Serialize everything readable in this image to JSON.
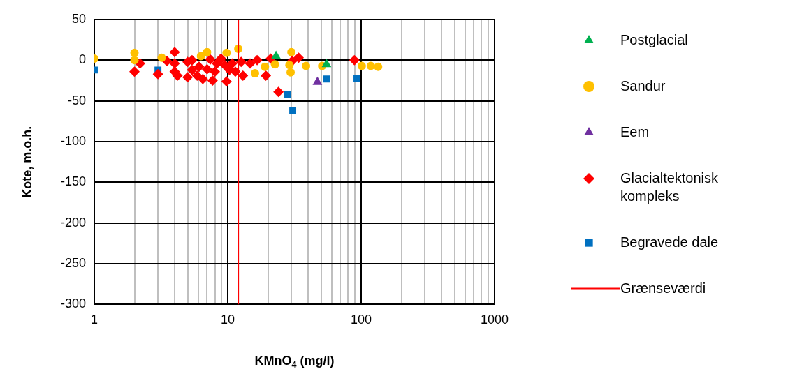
{
  "chart_data": {
    "type": "scatter",
    "xlabel": "KMnO$_{4}$ (mg/l)",
    "ylabel": "Kote, m.o.h.",
    "log": "x",
    "grid": true,
    "legend": "right",
    "xlim": [
      1,
      1000
    ],
    "ylim": [
      -300,
      50
    ],
    "xticks": [
      1,
      {
        "value": 2,
        "label": null
      },
      {
        "value": 3,
        "label": null
      },
      {
        "value": 4,
        "label": null
      },
      {
        "value": 5,
        "label": null
      },
      {
        "value": 6,
        "label": null
      },
      {
        "value": 7,
        "label": null
      },
      {
        "value": 8,
        "label": null
      },
      {
        "value": 9,
        "label": null
      },
      10,
      {
        "value": 20,
        "label": null
      },
      {
        "value": 30,
        "label": null
      },
      {
        "value": 40,
        "label": null
      },
      {
        "value": 50,
        "label": null
      },
      {
        "value": 60,
        "label": null
      },
      {
        "value": 70,
        "label": null
      },
      {
        "value": 80,
        "label": null
      },
      {
        "value": 90,
        "label": null
      },
      100,
      {
        "value": 200,
        "label": null
      },
      {
        "value": 300,
        "label": null
      },
      {
        "value": 400,
        "label": null
      },
      {
        "value": 500,
        "label": null
      },
      {
        "value": 600,
        "label": null
      },
      {
        "value": 700,
        "label": null
      },
      {
        "value": 800,
        "label": null
      },
      {
        "value": 900,
        "label": null
      },
      1000
    ],
    "yticks": [
      50,
      0,
      -50,
      -100,
      -150,
      -200,
      -250,
      -300
    ],
    "series": [
      {
        "name": "Postglacial",
        "color": "#00b050",
        "marker": "triangle",
        "x": [
          23,
          55
        ],
        "values": [
          5,
          -5
        ]
      },
      {
        "name": "Sandur",
        "color": "#ffc000",
        "marker": "circle",
        "x": [
          1,
          2,
          2,
          3.2,
          6.3,
          7,
          9.8,
          12,
          16,
          19,
          22.6,
          29,
          29.6,
          30,
          38.6,
          51,
          101,
          118,
          134
        ],
        "values": [
          2,
          9,
          0,
          3,
          5,
          10,
          9,
          14,
          -16,
          -8,
          -5,
          -6,
          -15,
          10,
          -7,
          -7,
          -7,
          -7,
          -8
        ]
      },
      {
        "name": "Eem",
        "color": "#7030a0",
        "marker": "triangle",
        "x": [
          47
        ],
        "values": [
          -27
        ]
      },
      {
        "name": "Glacialtektonisk kompleks",
        "color": "#ff0000",
        "marker": "diamond",
        "x": [
          2,
          2.2,
          3,
          3.5,
          4,
          4,
          4,
          4.2,
          5,
          5,
          5.4,
          5.4,
          5.9,
          6.1,
          6.5,
          7,
          7.4,
          7.7,
          8,
          8.3,
          8.9,
          9.5,
          9.8,
          10.3,
          10.8,
          11.4,
          12.6,
          13,
          14.7,
          16.6,
          19.3,
          21,
          24,
          30.4,
          34,
          89
        ],
        "values": [
          -14,
          -4,
          -17,
          -1,
          10,
          -4,
          -14,
          -19,
          -2,
          -21,
          0,
          -12,
          -19,
          -8,
          -23,
          -11,
          1,
          -25,
          -14,
          -4,
          2,
          -6,
          -26,
          -12,
          -4,
          -14,
          -2,
          -19,
          -4,
          0,
          -19,
          2,
          -39,
          -1,
          3,
          0
        ]
      },
      {
        "name": "Begravede dale",
        "color": "#0070c0",
        "marker": "square",
        "x": [
          1,
          3,
          28,
          30.7,
          55,
          93
        ],
        "values": [
          -12,
          -12,
          -42,
          -62,
          -23,
          -22
        ]
      },
      {
        "name": "Grænseværdi",
        "type": "line",
        "color": "#ff0000",
        "marker": "none",
        "x": [
          12,
          12
        ],
        "values": [
          50,
          -300
        ]
      }
    ]
  }
}
